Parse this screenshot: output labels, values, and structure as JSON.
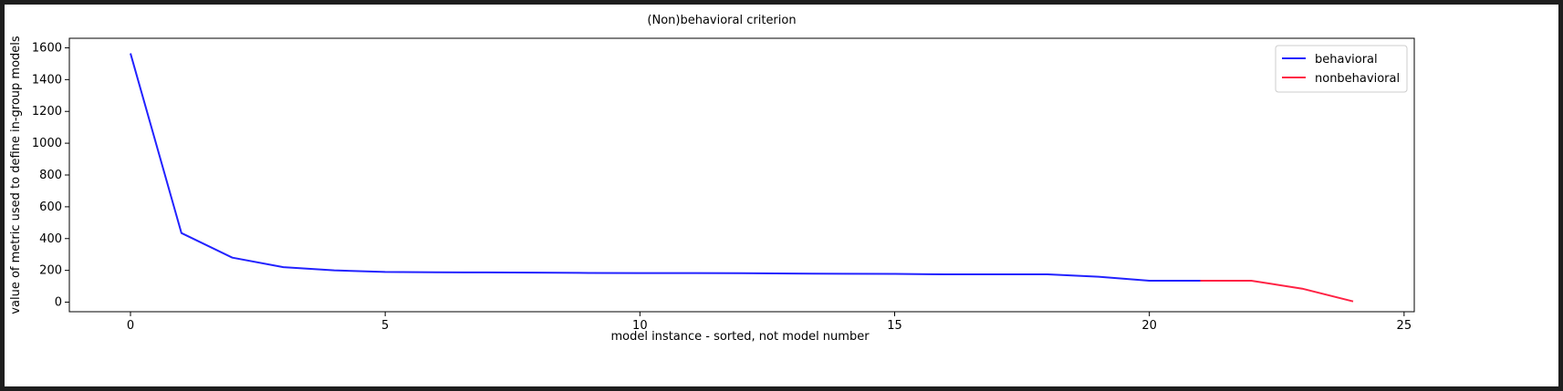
{
  "chart_data": {
    "type": "line",
    "title": "(Non)behavioral criterion",
    "xlabel": "model instance - sorted, not model number",
    "ylabel": "value of metric used to define in-group models",
    "xlim": [
      -1.2,
      25.2
    ],
    "ylim": [
      -60,
      1660
    ],
    "xticks": [
      0,
      5,
      10,
      15,
      20,
      25
    ],
    "yticks": [
      0,
      200,
      400,
      600,
      800,
      1000,
      1200,
      1400,
      1600
    ],
    "grid": false,
    "legend": "top-right",
    "series": [
      {
        "name": "behavioral",
        "color": "#2222ff",
        "x": [
          0,
          1,
          2,
          3,
          4,
          5,
          6,
          7,
          8,
          9,
          10,
          11,
          12,
          13,
          14,
          15,
          16,
          17,
          18,
          19,
          20,
          21
        ],
        "y": [
          1565,
          435,
          280,
          220,
          200,
          190,
          188,
          187,
          186,
          184,
          183,
          183,
          182,
          180,
          179,
          178,
          175,
          175,
          175,
          160,
          135,
          135
        ]
      },
      {
        "name": "nonbehavioral",
        "color": "#ff2244",
        "x": [
          21,
          22,
          23,
          24
        ],
        "y": [
          135,
          135,
          85,
          5
        ]
      }
    ]
  }
}
